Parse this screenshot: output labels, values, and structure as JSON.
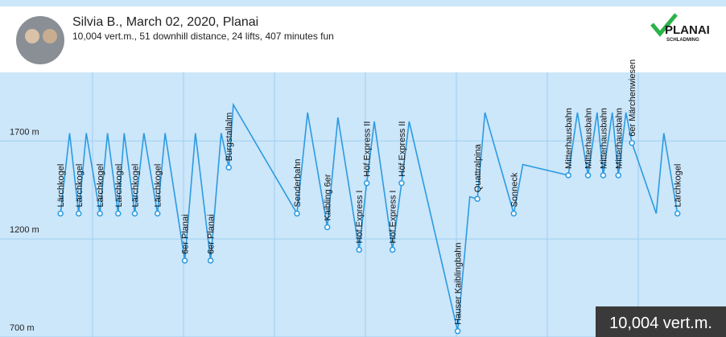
{
  "header": {
    "title": "Silvia B., March 02, 2020, Planai",
    "subtitle": "10,004 vert.m., 51 downhill distance, 24 lifts, 407 minutes fun",
    "logo": {
      "name": "PLANAI",
      "tagline": "SCHLADMING"
    }
  },
  "badge": "10,004 vert.m.",
  "chart_data": {
    "type": "line",
    "x": [
      7,
      13,
      19,
      24,
      33,
      38,
      45,
      49,
      56,
      62,
      71,
      76,
      89,
      96,
      106,
      113,
      118,
      121,
      163,
      170,
      183,
      190,
      204,
      209,
      214,
      226,
      232,
      237,
      269,
      277,
      282,
      287,
      306,
      312,
      342,
      348,
      355,
      361,
      365,
      371,
      375,
      380,
      384,
      400,
      405,
      414
    ],
    "series": [
      {
        "color": "#2b9be0",
        "values": [
          1330,
          1740,
          1330,
          1740,
          1330,
          1740,
          1330,
          1740,
          1330,
          1740,
          1330,
          1740,
          1090,
          1740,
          1090,
          1740,
          1565,
          1885,
          1330,
          1845,
          1260,
          1820,
          1145,
          1485,
          1800,
          1145,
          1485,
          1800,
          730,
          1415,
          1405,
          1845,
          1330,
          1580,
          1525,
          1845,
          1525,
          1845,
          1525,
          1845,
          1525,
          1845,
          1690,
          1330,
          1740,
          1330
        ]
      }
    ],
    "lifts": [
      {
        "name": "Lärchkogel",
        "x": 7,
        "elevation": 1330
      },
      {
        "name": "Lärchkogel",
        "x": 19,
        "elevation": 1330
      },
      {
        "name": "Lärchkogel",
        "x": 33,
        "elevation": 1330
      },
      {
        "name": "Lärchkogel",
        "x": 45,
        "elevation": 1330
      },
      {
        "name": "Lärchkogel",
        "x": 56,
        "elevation": 1330
      },
      {
        "name": "Lärchkogel",
        "x": 71,
        "elevation": 1330
      },
      {
        "name": "6er Planai",
        "x": 89,
        "elevation": 1090
      },
      {
        "name": "6er Planai",
        "x": 106,
        "elevation": 1090
      },
      {
        "name": "Burgstallalm",
        "x": 118,
        "elevation": 1565
      },
      {
        "name": "Senderbahn",
        "x": 163,
        "elevation": 1330
      },
      {
        "name": "Kaibling 6er",
        "x": 183,
        "elevation": 1260
      },
      {
        "name": "Höf.Express I",
        "x": 204,
        "elevation": 1145
      },
      {
        "name": "Höf.Express II",
        "x": 209,
        "elevation": 1485
      },
      {
        "name": "Höf.Express I",
        "x": 226,
        "elevation": 1145
      },
      {
        "name": "Höf.Express II",
        "x": 232,
        "elevation": 1485
      },
      {
        "name": "Hauser Kaiblingbahn",
        "x": 269,
        "elevation": 730
      },
      {
        "name": "Quattralpina",
        "x": 282,
        "elevation": 1405
      },
      {
        "name": "Sonneck",
        "x": 306,
        "elevation": 1330
      },
      {
        "name": "Mitterhausbahn",
        "x": 342,
        "elevation": 1525
      },
      {
        "name": "Mitterhausbahn",
        "x": 355,
        "elevation": 1525
      },
      {
        "name": "Mitterhausbahn",
        "x": 365,
        "elevation": 1525
      },
      {
        "name": "Mitterhausbahn",
        "x": 375,
        "elevation": 1525
      },
      {
        "name": "6er Märchenwiesen",
        "x": 384,
        "elevation": 1690
      },
      {
        "name": "Lärchkogel",
        "x": 414,
        "elevation": 1330
      }
    ],
    "xlim": [
      0,
      420
    ],
    "ylim": [
      700,
      2050
    ],
    "yticks": [
      {
        "value": 700,
        "label": "700 m"
      },
      {
        "value": 1200,
        "label": "1200 m"
      },
      {
        "value": 1700,
        "label": "1700 m"
      }
    ],
    "grid": true
  }
}
